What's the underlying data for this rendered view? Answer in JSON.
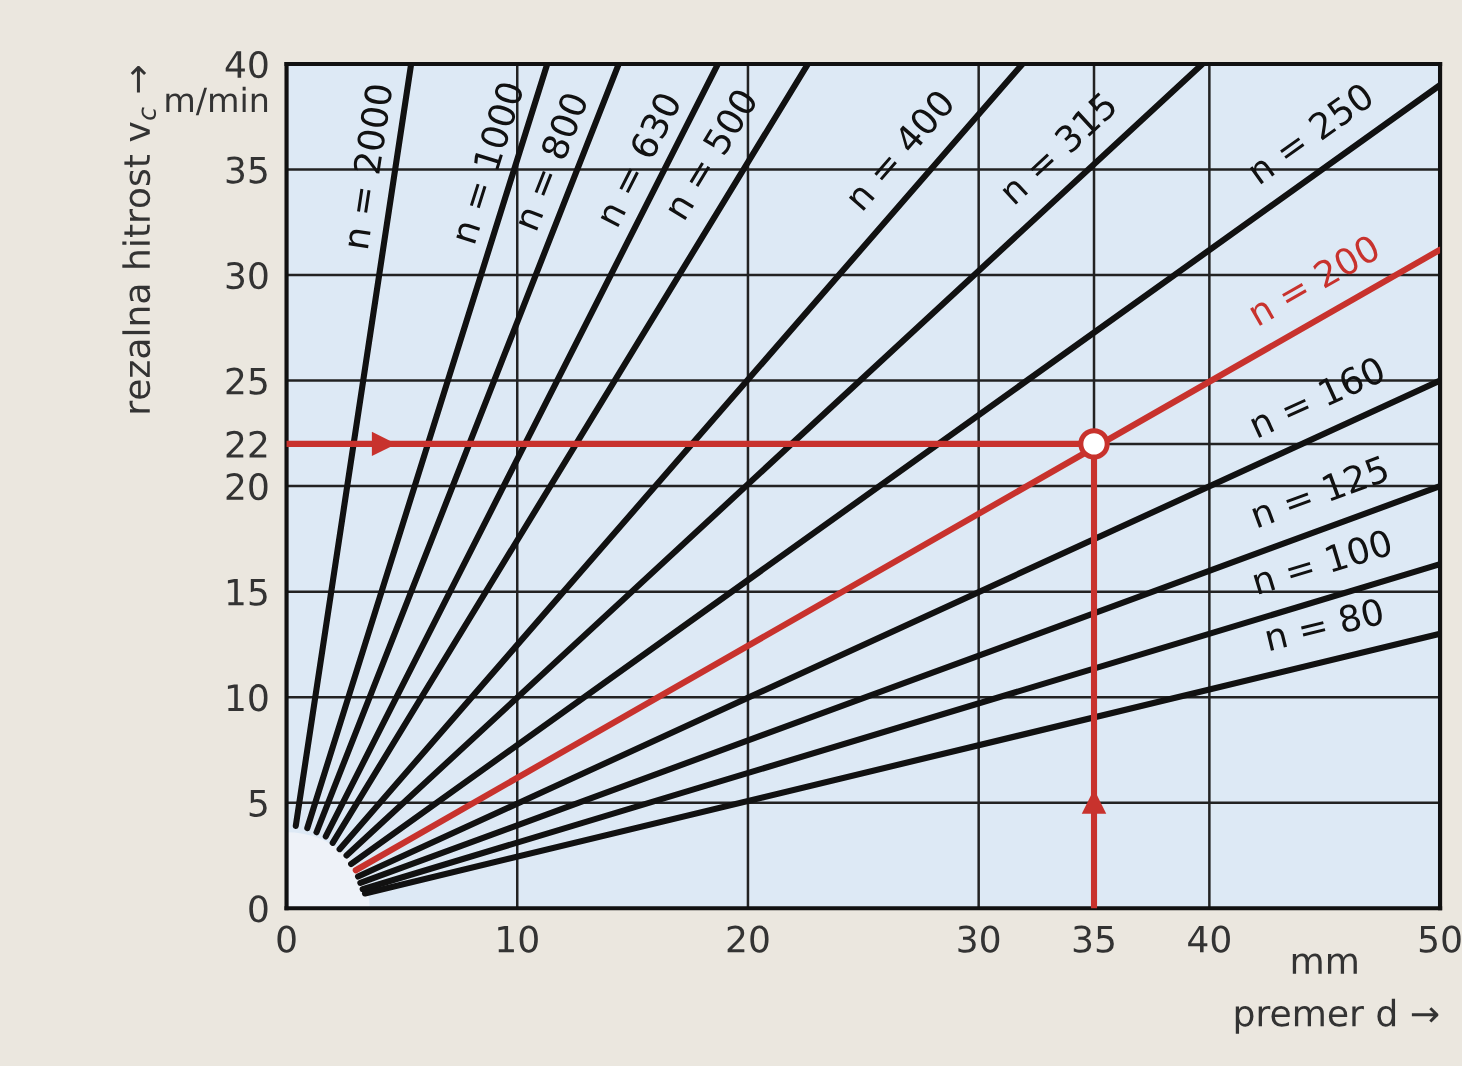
{
  "chart_data": {
    "type": "line",
    "xlabel": "premer d →",
    "ylabel": "rezalna hitrost v$_{c}$ →",
    "xlim": [
      0,
      50
    ],
    "ylim": [
      0,
      40
    ],
    "xticks": [
      0,
      10,
      20,
      30,
      35,
      40,
      50
    ],
    "yticks": [
      0,
      5,
      10,
      15,
      20,
      22,
      25,
      30,
      35,
      40
    ],
    "grid": true,
    "line_style": "solid",
    "annotations": [
      "m/min",
      "mm"
    ],
    "series": [
      {
        "name": "n = 2000",
        "color": "#111111",
        "x": [
          0.4,
          5.4
        ],
        "values": [
          3.9,
          40
        ]
      },
      {
        "name": "n = 1000",
        "color": "#111111",
        "x": [
          0.9,
          11.3
        ],
        "values": [
          3.8,
          40
        ]
      },
      {
        "name": "n = 800",
        "color": "#111111",
        "x": [
          1.3,
          14.4
        ],
        "values": [
          3.6,
          40
        ]
      },
      {
        "name": "n = 630",
        "color": "#111111",
        "x": [
          1.7,
          18.7
        ],
        "values": [
          3.4,
          40
        ]
      },
      {
        "name": "n = 500",
        "color": "#111111",
        "x": [
          2.0,
          22.6
        ],
        "values": [
          3.1,
          40
        ]
      },
      {
        "name": "n = 400",
        "color": "#111111",
        "x": [
          2.3,
          31.9
        ],
        "values": [
          2.8,
          40
        ]
      },
      {
        "name": "n = 315",
        "color": "#111111",
        "x": [
          2.6,
          39.7
        ],
        "values": [
          2.5,
          40
        ]
      },
      {
        "name": "n = 250",
        "color": "#111111",
        "x": [
          2.8,
          50
        ],
        "values": [
          2.1,
          39.0
        ]
      },
      {
        "name": "n = 200",
        "color": "#c8322d",
        "x": [
          3.0,
          50
        ],
        "values": [
          1.8,
          31.2
        ]
      },
      {
        "name": "n = 160",
        "color": "#111111",
        "x": [
          3.1,
          50
        ],
        "values": [
          1.5,
          25.0
        ]
      },
      {
        "name": "n = 125",
        "color": "#111111",
        "x": [
          3.2,
          50
        ],
        "values": [
          1.2,
          20.0
        ]
      },
      {
        "name": "n = 100",
        "color": "#111111",
        "x": [
          3.3,
          50
        ],
        "values": [
          0.9,
          16.3
        ]
      },
      {
        "name": "n = 80",
        "color": "#111111",
        "x": [
          3.4,
          50
        ],
        "values": [
          0.7,
          13.0
        ]
      },
      {
        "type": "line",
        "color": "#c8322d",
        "x": [
          0,
          35,
          35
        ],
        "values": [
          22,
          22,
          0
        ]
      },
      {
        "type": "scatter",
        "marker": "circle",
        "color": "#c8322d",
        "x": [
          35
        ],
        "values": [
          22
        ]
      }
    ]
  }
}
